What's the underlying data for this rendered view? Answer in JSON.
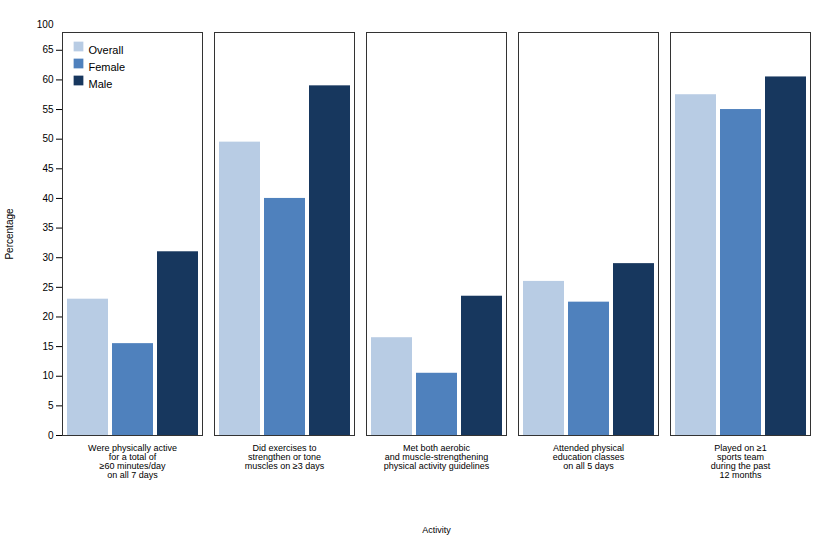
{
  "chart_data": {
    "type": "bar",
    "categories": [
      "Were physically active\nfor a total of\n≥60 minutes/day\non all 7 days",
      "Did exercises to\nstrengthen or tone\nmuscles on ≥3 days",
      "Met both aerobic\nand muscle-strengthening\nphysical activity guidelines",
      "Attended physical\neducation classes\non all 5 days",
      "Played on ≥1\nsports team\nduring the past\n12 months"
    ],
    "series": [
      {
        "name": "Overall",
        "color": "#b8cce4",
        "values": [
          23.0,
          49.5,
          16.5,
          26.0,
          57.5
        ]
      },
      {
        "name": "Female",
        "color": "#4f81bd",
        "values": [
          15.5,
          40.0,
          10.5,
          22.5,
          55.0
        ]
      },
      {
        "name": "Male",
        "color": "#17375e",
        "values": [
          31.0,
          59.0,
          23.5,
          29.0,
          60.5
        ]
      }
    ],
    "xlabel": "Activity",
    "ylabel": "Percentage",
    "ylim": [
      0,
      68
    ],
    "yticks": [
      0,
      5,
      10,
      15,
      20,
      25,
      30,
      35,
      40,
      45,
      50,
      55,
      60,
      65
    ],
    "grid": false,
    "legend": "upper left",
    "annotations": [
      {
        "text": "100"
      }
    ]
  }
}
